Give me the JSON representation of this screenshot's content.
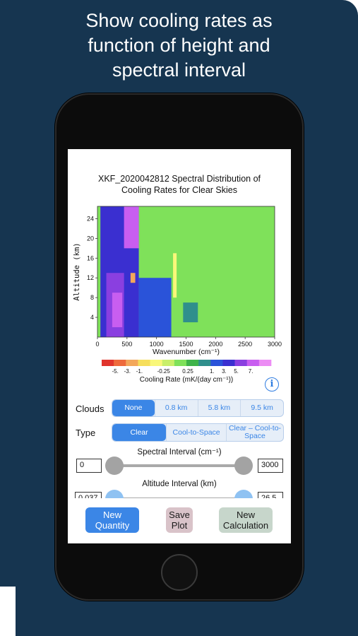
{
  "headline": [
    "Show cooling rates as",
    "function of height and",
    "spectral interval"
  ],
  "plot": {
    "title_lines": [
      "XKF_2020042812 Spectral Distribution of",
      "Cooling Rates for Clear Skies"
    ]
  },
  "chart_data": {
    "type": "heatmap",
    "title": "XKF_2020042812 Spectral Distribution of Cooling Rates for Clear Skies",
    "xlabel": "Wavenumber (cm⁻¹)",
    "ylabel": "Altitude (km)",
    "xlim": [
      0,
      3000
    ],
    "ylim": [
      0,
      26.5
    ],
    "x_ticks": [
      0,
      500,
      1000,
      1500,
      2000,
      2500,
      3000
    ],
    "y_ticks": [
      4,
      8,
      12,
      16,
      20,
      24
    ],
    "colorbar": {
      "label": "Cooling Rate (mK/(day cm⁻¹))",
      "tick_labels": [
        "-5.",
        "-3.",
        "-1.",
        "-0.25",
        "0.25",
        "1.",
        "3.",
        "5.",
        "7."
      ],
      "colors": [
        "#e0342c",
        "#ee6a3c",
        "#f3a75a",
        "#f6de5c",
        "#f9f77a",
        "#c9ef6a",
        "#7fe15a",
        "#3fb34a",
        "#2f8f8c",
        "#2a53d9",
        "#3a2fd0",
        "#8a3fe0",
        "#c85ef0",
        "#ec8cf4"
      ]
    },
    "background_value_color": "#7fe15a",
    "regions": [
      {
        "x": [
          50,
          700
        ],
        "y": [
          0,
          26.5
        ],
        "color": "#3a2fd0"
      },
      {
        "x": [
          150,
          450
        ],
        "y": [
          0,
          13
        ],
        "color": "#8a3fe0"
      },
      {
        "x": [
          250,
          420
        ],
        "y": [
          2,
          9
        ],
        "color": "#c85ef0"
      },
      {
        "x": [
          450,
          700
        ],
        "y": [
          18,
          26.5
        ],
        "color": "#c85ef0"
      },
      {
        "x": [
          700,
          1250
        ],
        "y": [
          0,
          12
        ],
        "color": "#2a53d9"
      },
      {
        "x": [
          560,
          640
        ],
        "y": [
          11,
          13
        ],
        "color": "#f3a75a"
      },
      {
        "x": [
          1280,
          1340
        ],
        "y": [
          8,
          17
        ],
        "color": "#f9f77a"
      },
      {
        "x": [
          1450,
          1700
        ],
        "y": [
          3,
          7
        ],
        "color": "#2f8f8c"
      }
    ]
  },
  "controls": {
    "clouds": {
      "label": "Clouds",
      "options": [
        "None",
        "0.8 km",
        "5.8 km",
        "9.5 km"
      ],
      "selected": "None"
    },
    "type": {
      "label": "Type",
      "options": [
        "Clear",
        "Cool-to-Space",
        "Clear – Cool-to-Space"
      ],
      "selected": "Clear"
    },
    "spectral": {
      "title": "Spectral Interval (cm⁻¹)",
      "min_value": "0",
      "max_value": "3000"
    },
    "altitude": {
      "title": "Altitude Interval (km)",
      "min_value": "0.037",
      "max_value": "26.5"
    }
  },
  "toolbar": {
    "new_quantity": "New Quantity",
    "save_plot": "Save Plot",
    "new_calculation": "New Calculation"
  },
  "colors": {
    "background": "#163550",
    "accent": "#3b86e6",
    "new_quantity_bg": "#3b86e6",
    "save_plot_bg": "#d9c3c9",
    "new_calculation_bg": "#c7d6cb"
  }
}
